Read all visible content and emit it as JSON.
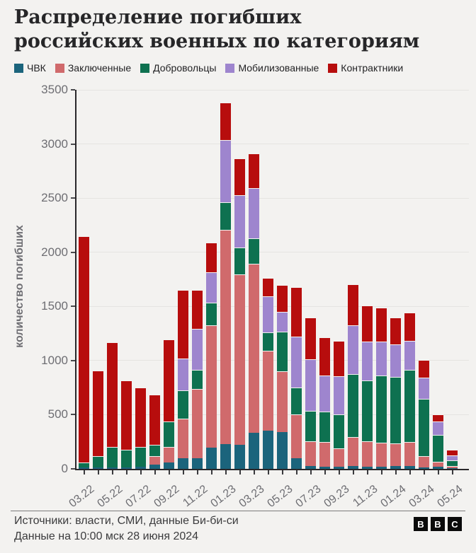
{
  "title": "Распределение погибших российских военных по категориям",
  "legend": [
    {
      "label": "ЧВК",
      "color": "#1B647C"
    },
    {
      "label": "Заключенные",
      "color": "#D06A6C"
    },
    {
      "label": "Добровольцы",
      "color": "#0E7150"
    },
    {
      "label": "Мобилизованные",
      "color": "#9E85CE"
    },
    {
      "label": "Контрактники",
      "color": "#B70D0D"
    }
  ],
  "chart_data": {
    "type": "bar",
    "stacked": true,
    "title": "Распределение погибших российских военных по категориям",
    "ylabel": "количество погибших",
    "xlabel": "",
    "ylim": [
      0,
      3500
    ],
    "yticks": [
      0,
      500,
      1000,
      1500,
      2000,
      2500,
      3000,
      3500
    ],
    "grid": "horizontal",
    "legend_position": "top",
    "x": [
      "03.22",
      "04.22",
      "05.22",
      "06.22",
      "07.22",
      "08.22",
      "09.22",
      "10.22",
      "11.22",
      "12.22",
      "01.23",
      "02.23",
      "03.23",
      "04.23",
      "05.23",
      "06.23",
      "07.23",
      "08.23",
      "09.23",
      "10.23",
      "11.23",
      "12.23",
      "01.24",
      "02.24",
      "03.24",
      "04.24",
      "05.24"
    ],
    "x_ticks_shown": [
      "03.22",
      "05.22",
      "07.22",
      "09.22",
      "11.22",
      "01.23",
      "03.23",
      "05.23",
      "07.23",
      "09.23",
      "11.23",
      "01.24",
      "03.24",
      "05.24"
    ],
    "series": [
      {
        "name": "ЧВК",
        "color": "#1B647C",
        "values": [
          15,
          15,
          15,
          10,
          20,
          40,
          60,
          100,
          100,
          195,
          230,
          220,
          335,
          350,
          340,
          100,
          25,
          20,
          20,
          25,
          20,
          20,
          25,
          25,
          15,
          20,
          5
        ]
      },
      {
        "name": "Заключенные",
        "color": "#D06A6C",
        "values": [
          0,
          0,
          0,
          0,
          0,
          80,
          140,
          365,
          640,
          1130,
          1975,
          1575,
          1560,
          740,
          560,
          400,
          230,
          230,
          170,
          270,
          235,
          220,
          210,
          225,
          100,
          45,
          20
        ]
      },
      {
        "name": "Добровольцы",
        "color": "#0E7150",
        "values": [
          45,
          105,
          190,
          165,
          180,
          100,
          235,
          260,
          175,
          210,
          260,
          250,
          235,
          170,
          365,
          250,
          280,
          280,
          315,
          580,
          560,
          620,
          615,
          665,
          530,
          250,
          55
        ]
      },
      {
        "name": "Мобилизованные",
        "color": "#9E85CE",
        "values": [
          0,
          0,
          0,
          0,
          0,
          0,
          0,
          295,
          380,
          280,
          570,
          480,
          465,
          335,
          185,
          470,
          475,
          330,
          350,
          450,
          360,
          315,
          300,
          270,
          200,
          120,
          45
        ]
      },
      {
        "name": "Контрактники",
        "color": "#B70D0D",
        "values": [
          2090,
          790,
          965,
          640,
          550,
          465,
          760,
          630,
          360,
          275,
          345,
          340,
          315,
          170,
          250,
          460,
          390,
          355,
          330,
          380,
          335,
          315,
          250,
          260,
          160,
          70,
          50
        ]
      }
    ]
  },
  "footer": {
    "source": "Источники: власти, СМИ, данные Би-би-си",
    "note": "Данные на 10:00 мск 28 июня 2024"
  },
  "logo": {
    "letters": [
      "B",
      "B",
      "C"
    ]
  }
}
